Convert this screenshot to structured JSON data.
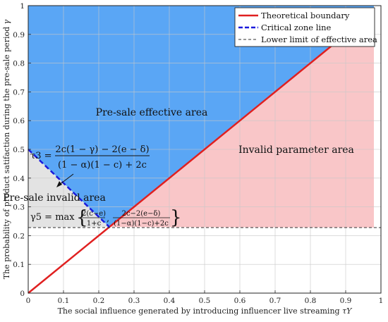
{
  "chart_data": {
    "type": "area",
    "xlabel": "The social influence generated by introducing influencer live streaming",
    "xlabel_symbol": "τY",
    "ylabel": "The probability of product satifaction during the pre-sale period",
    "ylabel_symbol": "γ",
    "xlim": [
      0,
      1
    ],
    "ylim": [
      0,
      1
    ],
    "grid": true,
    "legend_position": "top-right",
    "x_ticks": [
      "0",
      "0.1",
      "0.2",
      "0.3",
      "0.4",
      "0.5",
      "0.6",
      "0.7",
      "0.8",
      "0.9",
      "1"
    ],
    "y_ticks": [
      "0",
      "0.1",
      "0.2",
      "0.3",
      "0.4",
      "0.5",
      "0.6",
      "0.7",
      "0.8",
      "0.9",
      "1"
    ],
    "series": [
      {
        "name": "Theoretical boundary",
        "x": [
          0,
          0.98
        ],
        "y": [
          0,
          0.98
        ],
        "color": "#e02020",
        "style": "solid"
      },
      {
        "name": "Critical zone line",
        "x": [
          0,
          0.23
        ],
        "y": [
          0.5,
          0.23
        ],
        "color": "#1a1adc",
        "style": "dashed"
      },
      {
        "name": "Lower limit of effective area",
        "x": [
          0,
          1
        ],
        "y": [
          0.228,
          0.228
        ],
        "color": "#333333",
        "style": "dashed"
      }
    ],
    "regions": [
      {
        "label": "Pre-sale effective area",
        "color": "#5aa6f5",
        "polygon": [
          [
            0,
            1
          ],
          [
            0.98,
            1
          ],
          [
            0.98,
            0.98
          ],
          [
            0.23,
            0.23
          ],
          [
            0,
            0.5
          ]
        ]
      },
      {
        "label": "Invalid parameter area",
        "color": "#f9c6c8",
        "polygon": [
          [
            0.98,
            0.98
          ],
          [
            0.23,
            0.23
          ],
          [
            0.98,
            0.228
          ]
        ]
      },
      {
        "label": "Pre-sale invalid area",
        "color": "#e3e3e3",
        "polygon": [
          [
            0,
            0.5
          ],
          [
            0.23,
            0.23
          ],
          [
            0,
            0.228
          ]
        ]
      }
    ],
    "annotations": {
      "tau3": {
        "lhs": "τ3 =",
        "numerator": "2c(1 − γ) − 2(e − δ)",
        "denominator": "(1 − α)(1 − c) + 2c"
      },
      "gamma5": {
        "lhs": "γ5 = max",
        "frac1_num": "2(c−e)",
        "frac1_den": "1+c",
        "frac2_num": "2c−2(e−δ)",
        "frac2_den": "(1−α)(1−c)+2c"
      }
    }
  }
}
